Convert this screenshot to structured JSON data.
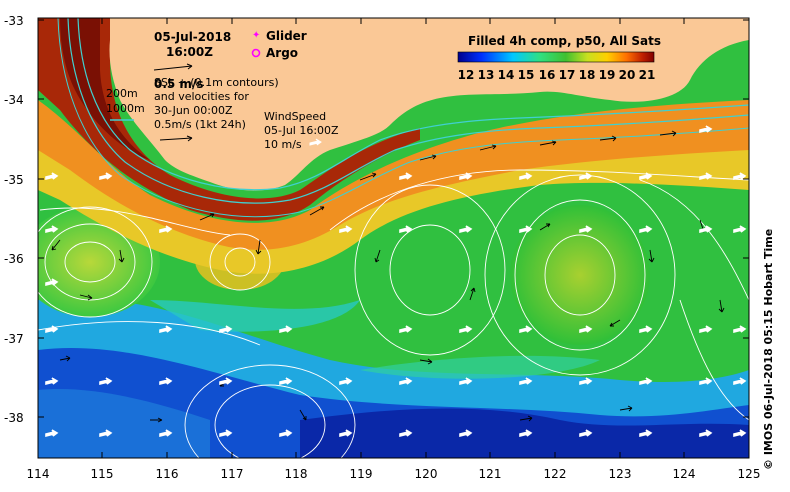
{
  "map": {
    "date": "05-Jul-2018",
    "time": "16:00Z",
    "legend_glider": "Glider",
    "legend_argo": "Argo",
    "glider_color": "#ff00ff",
    "argo_color": "#ff00ff",
    "vel_scale_label": "0.5 m/s",
    "ssh_lines": [
      "SSL + (0.1m contours)",
      "and velocities for",
      "30-Jun 00:00Z"
    ],
    "ssh_scale_label": "0.5m/s (1kt 24h)",
    "depth_200": "200m",
    "depth_1000": "1000m",
    "wind_lines": [
      "WindSpeed",
      "05-Jul 16:00Z"
    ],
    "wind_scale": "10 m/s",
    "colorbar_title": "Filled 4h comp, p50, All Sats",
    "colorbar_ticks": [
      "12",
      "13",
      "14",
      "15",
      "16",
      "17",
      "18",
      "19",
      "20",
      "21"
    ],
    "credit": "© IMOS 06-Jul-2018 05:15 Hobart Time",
    "land_color": "#fac896",
    "isobath_color": "#40d0d0",
    "contour_color": "#ffffff"
  },
  "axes": {
    "x_ticks": [
      "114",
      "115",
      "116",
      "117",
      "118",
      "119",
      "120",
      "121",
      "122",
      "123",
      "124",
      "125"
    ],
    "y_ticks": [
      "-33",
      "-34",
      "-35",
      "-36",
      "-37",
      "-38"
    ]
  }
}
